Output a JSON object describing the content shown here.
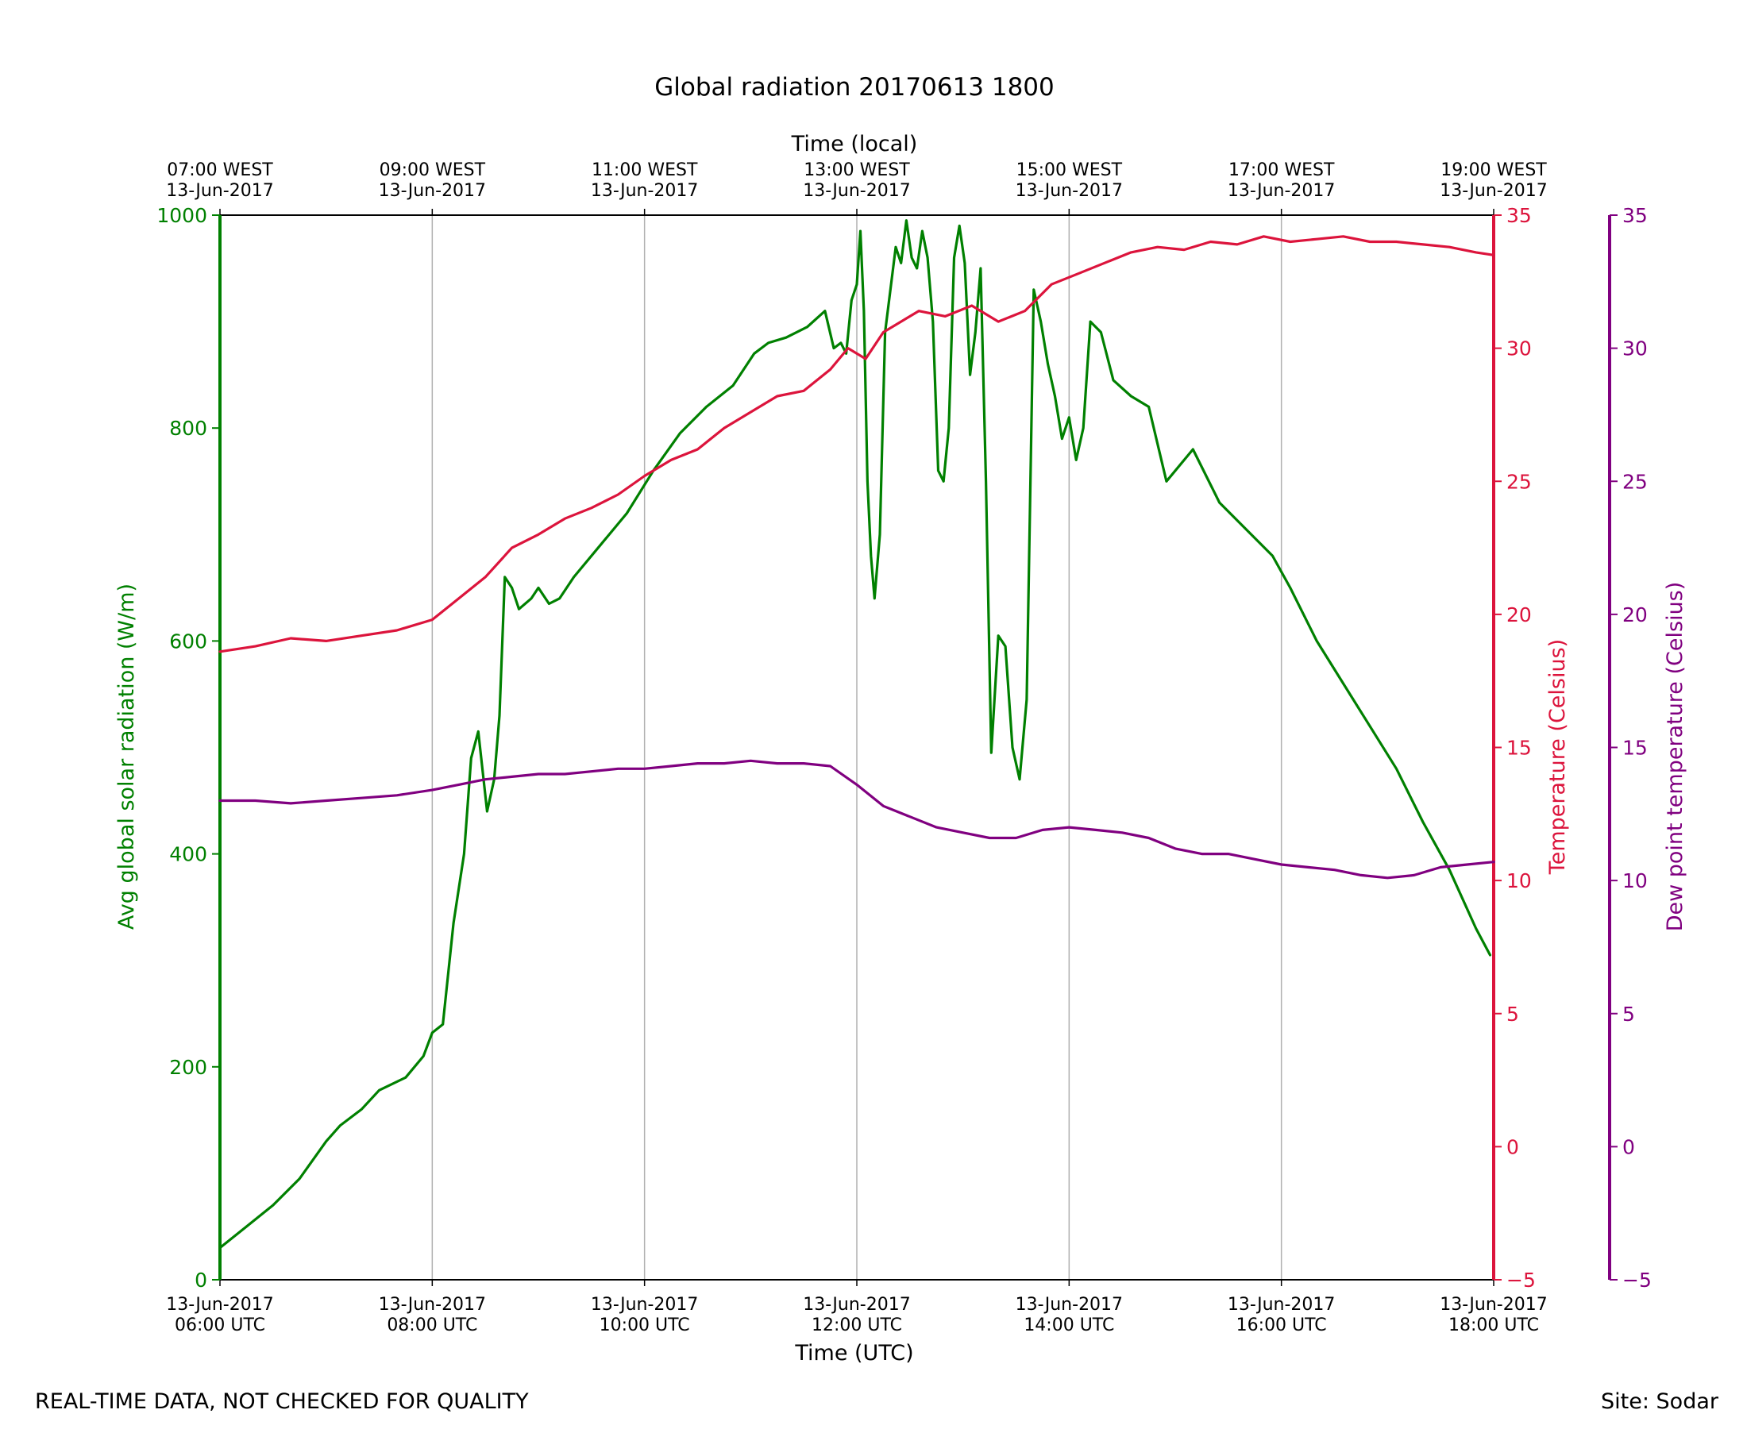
{
  "chart_data": {
    "type": "line",
    "title": "Global radiation 20170613 1800",
    "xlabel": "Time (UTC)",
    "top_xlabel": "Time (local)",
    "x_range": [
      "2017-06-13T06:00",
      "2017-06-13T18:00"
    ],
    "x_ticks_bottom": [
      {
        "date": "13-Jun-2017",
        "time": "06:00 UTC"
      },
      {
        "date": "13-Jun-2017",
        "time": "08:00 UTC"
      },
      {
        "date": "13-Jun-2017",
        "time": "10:00 UTC"
      },
      {
        "date": "13-Jun-2017",
        "time": "12:00 UTC"
      },
      {
        "date": "13-Jun-2017",
        "time": "14:00 UTC"
      },
      {
        "date": "13-Jun-2017",
        "time": "16:00 UTC"
      },
      {
        "date": "13-Jun-2017",
        "time": "18:00 UTC"
      }
    ],
    "x_ticks_top": [
      {
        "time": "07:00 WEST",
        "date": "13-Jun-2017"
      },
      {
        "time": "09:00 WEST",
        "date": "13-Jun-2017"
      },
      {
        "time": "11:00 WEST",
        "date": "13-Jun-2017"
      },
      {
        "time": "13:00 WEST",
        "date": "13-Jun-2017"
      },
      {
        "time": "15:00 WEST",
        "date": "13-Jun-2017"
      },
      {
        "time": "17:00 WEST",
        "date": "13-Jun-2017"
      },
      {
        "time": "19:00 WEST",
        "date": "13-Jun-2017"
      }
    ],
    "grid": "vertical",
    "axes": {
      "radiation": {
        "label": "Avg global solar radiation (W/m)",
        "range": [
          0,
          1000
        ],
        "ticks": [
          "0",
          "200",
          "400",
          "600",
          "800",
          "1000"
        ],
        "color": "#008000",
        "side": "left"
      },
      "temperature": {
        "label": "Temperature (Celsius)",
        "range": [
          -5,
          35
        ],
        "ticks": [
          "−5",
          "0",
          "5",
          "10",
          "15",
          "20",
          "25",
          "30",
          "35"
        ],
        "color": "#dc143c",
        "side": "right"
      },
      "dewpoint": {
        "label": "Dew point temperature (Celsius)",
        "range": [
          -5,
          35
        ],
        "ticks": [
          "−5",
          "0",
          "5",
          "10",
          "15",
          "20",
          "25",
          "30",
          "35"
        ],
        "color": "#800080",
        "side": "right-outer"
      }
    },
    "series": [
      {
        "axis": "radiation",
        "color": "#008000",
        "points": [
          [
            "06:00",
            30
          ],
          [
            "06:15",
            50
          ],
          [
            "06:30",
            70
          ],
          [
            "06:45",
            95
          ],
          [
            "07:00",
            130
          ],
          [
            "07:08",
            145
          ],
          [
            "07:20",
            160
          ],
          [
            "07:30",
            178
          ],
          [
            "07:45",
            190
          ],
          [
            "07:55",
            210
          ],
          [
            "08:00",
            232
          ],
          [
            "08:06",
            240
          ],
          [
            "08:12",
            335
          ],
          [
            "08:18",
            400
          ],
          [
            "08:22",
            490
          ],
          [
            "08:26",
            515
          ],
          [
            "08:31",
            440
          ],
          [
            "08:35",
            470
          ],
          [
            "08:38",
            530
          ],
          [
            "08:41",
            660
          ],
          [
            "08:45",
            650
          ],
          [
            "08:49",
            630
          ],
          [
            "08:56",
            640
          ],
          [
            "09:00",
            650
          ],
          [
            "09:06",
            635
          ],
          [
            "09:12",
            640
          ],
          [
            "09:20",
            660
          ],
          [
            "09:35",
            690
          ],
          [
            "09:50",
            720
          ],
          [
            "10:05",
            760
          ],
          [
            "10:20",
            795
          ],
          [
            "10:35",
            820
          ],
          [
            "10:50",
            840
          ],
          [
            "11:02",
            870
          ],
          [
            "11:10",
            880
          ],
          [
            "11:20",
            885
          ],
          [
            "11:32",
            895
          ],
          [
            "11:42",
            910
          ],
          [
            "11:47",
            875
          ],
          [
            "11:51",
            880
          ],
          [
            "11:54",
            870
          ],
          [
            "11:57",
            920
          ],
          [
            "12:00",
            935
          ],
          [
            "12:02",
            985
          ],
          [
            "12:04",
            910
          ],
          [
            "12:06",
            750
          ],
          [
            "12:08",
            680
          ],
          [
            "12:10",
            640
          ],
          [
            "12:13",
            700
          ],
          [
            "12:16",
            890
          ],
          [
            "12:19",
            930
          ],
          [
            "12:22",
            970
          ],
          [
            "12:25",
            955
          ],
          [
            "12:28",
            995
          ],
          [
            "12:31",
            960
          ],
          [
            "12:34",
            950
          ],
          [
            "12:37",
            985
          ],
          [
            "12:40",
            960
          ],
          [
            "12:43",
            900
          ],
          [
            "12:46",
            760
          ],
          [
            "12:49",
            750
          ],
          [
            "12:52",
            800
          ],
          [
            "12:55",
            960
          ],
          [
            "12:58",
            990
          ],
          [
            "13:01",
            955
          ],
          [
            "13:04",
            850
          ],
          [
            "13:07",
            890
          ],
          [
            "13:10",
            950
          ],
          [
            "13:13",
            750
          ],
          [
            "13:16",
            495
          ],
          [
            "13:20",
            605
          ],
          [
            "13:24",
            595
          ],
          [
            "13:28",
            500
          ],
          [
            "13:32",
            470
          ],
          [
            "13:36",
            545
          ],
          [
            "13:40",
            930
          ],
          [
            "13:44",
            900
          ],
          [
            "13:48",
            860
          ],
          [
            "13:52",
            830
          ],
          [
            "13:56",
            790
          ],
          [
            "14:00",
            810
          ],
          [
            "14:04",
            770
          ],
          [
            "14:08",
            800
          ],
          [
            "14:12",
            900
          ],
          [
            "14:18",
            890
          ],
          [
            "14:25",
            845
          ],
          [
            "14:35",
            830
          ],
          [
            "14:45",
            820
          ],
          [
            "14:55",
            750
          ],
          [
            "15:10",
            780
          ],
          [
            "15:25",
            730
          ],
          [
            "15:40",
            705
          ],
          [
            "15:55",
            680
          ],
          [
            "16:05",
            650
          ],
          [
            "16:20",
            600
          ],
          [
            "16:35",
            560
          ],
          [
            "16:50",
            520
          ],
          [
            "17:05",
            480
          ],
          [
            "17:20",
            430
          ],
          [
            "17:35",
            385
          ],
          [
            "17:50",
            330
          ],
          [
            "17:58",
            305
          ]
        ]
      },
      {
        "axis": "temperature",
        "color": "#dc143c",
        "points": [
          [
            "06:00",
            18.6
          ],
          [
            "06:20",
            18.8
          ],
          [
            "06:40",
            19.1
          ],
          [
            "07:00",
            19.0
          ],
          [
            "07:20",
            19.2
          ],
          [
            "07:40",
            19.4
          ],
          [
            "08:00",
            19.8
          ],
          [
            "08:15",
            20.6
          ],
          [
            "08:30",
            21.4
          ],
          [
            "08:45",
            22.5
          ],
          [
            "09:00",
            23.0
          ],
          [
            "09:15",
            23.6
          ],
          [
            "09:30",
            24.0
          ],
          [
            "09:45",
            24.5
          ],
          [
            "10:00",
            25.2
          ],
          [
            "10:15",
            25.8
          ],
          [
            "10:30",
            26.2
          ],
          [
            "10:45",
            27.0
          ],
          [
            "11:00",
            27.6
          ],
          [
            "11:15",
            28.2
          ],
          [
            "11:30",
            28.4
          ],
          [
            "11:45",
            29.2
          ],
          [
            "11:55",
            30.0
          ],
          [
            "12:05",
            29.6
          ],
          [
            "12:15",
            30.6
          ],
          [
            "12:25",
            31.0
          ],
          [
            "12:35",
            31.4
          ],
          [
            "12:50",
            31.2
          ],
          [
            "13:05",
            31.6
          ],
          [
            "13:20",
            31.0
          ],
          [
            "13:35",
            31.4
          ],
          [
            "13:50",
            32.4
          ],
          [
            "14:05",
            32.8
          ],
          [
            "14:20",
            33.2
          ],
          [
            "14:35",
            33.6
          ],
          [
            "14:50",
            33.8
          ],
          [
            "15:05",
            33.7
          ],
          [
            "15:20",
            34.0
          ],
          [
            "15:35",
            33.9
          ],
          [
            "15:50",
            34.2
          ],
          [
            "16:05",
            34.0
          ],
          [
            "16:20",
            34.1
          ],
          [
            "16:35",
            34.2
          ],
          [
            "16:50",
            34.0
          ],
          [
            "17:05",
            34.0
          ],
          [
            "17:20",
            33.9
          ],
          [
            "17:35",
            33.8
          ],
          [
            "17:50",
            33.6
          ],
          [
            "18:00",
            33.5
          ]
        ]
      },
      {
        "axis": "dewpoint",
        "color": "#800080",
        "points": [
          [
            "06:00",
            13.0
          ],
          [
            "06:20",
            13.0
          ],
          [
            "06:40",
            12.9
          ],
          [
            "07:00",
            13.0
          ],
          [
            "07:20",
            13.1
          ],
          [
            "07:40",
            13.2
          ],
          [
            "08:00",
            13.4
          ],
          [
            "08:15",
            13.6
          ],
          [
            "08:30",
            13.8
          ],
          [
            "08:45",
            13.9
          ],
          [
            "09:00",
            14.0
          ],
          [
            "09:15",
            14.0
          ],
          [
            "09:30",
            14.1
          ],
          [
            "09:45",
            14.2
          ],
          [
            "10:00",
            14.2
          ],
          [
            "10:15",
            14.3
          ],
          [
            "10:30",
            14.4
          ],
          [
            "10:45",
            14.4
          ],
          [
            "11:00",
            14.5
          ],
          [
            "11:15",
            14.4
          ],
          [
            "11:30",
            14.4
          ],
          [
            "11:45",
            14.3
          ],
          [
            "12:00",
            13.6
          ],
          [
            "12:15",
            12.8
          ],
          [
            "12:30",
            12.4
          ],
          [
            "12:45",
            12.0
          ],
          [
            "13:00",
            11.8
          ],
          [
            "13:15",
            11.6
          ],
          [
            "13:30",
            11.6
          ],
          [
            "13:45",
            11.9
          ],
          [
            "14:00",
            12.0
          ],
          [
            "14:15",
            11.9
          ],
          [
            "14:30",
            11.8
          ],
          [
            "14:45",
            11.6
          ],
          [
            "15:00",
            11.2
          ],
          [
            "15:15",
            11.0
          ],
          [
            "15:30",
            11.0
          ],
          [
            "15:45",
            10.8
          ],
          [
            "16:00",
            10.6
          ],
          [
            "16:15",
            10.5
          ],
          [
            "16:30",
            10.4
          ],
          [
            "16:45",
            10.2
          ],
          [
            "17:00",
            10.1
          ],
          [
            "17:15",
            10.2
          ],
          [
            "17:30",
            10.5
          ],
          [
            "17:45",
            10.6
          ],
          [
            "18:00",
            10.7
          ]
        ]
      }
    ]
  },
  "footer": {
    "left_note": "REAL-TIME DATA, NOT CHECKED FOR QUALITY",
    "site": "Site: Sodar"
  }
}
